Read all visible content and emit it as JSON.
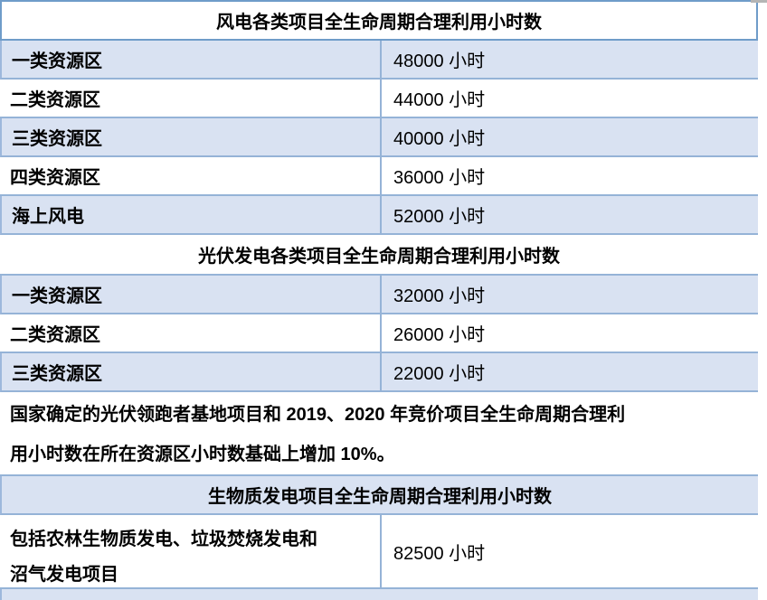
{
  "colors": {
    "shaded_row_bg": "#d9e2f2",
    "row_border": "#95b3d7",
    "header_box_border": "#6f9cc9",
    "text": "#000000"
  },
  "table": {
    "wind": {
      "title": "风电各类项目全生命周期合理利用小时数",
      "rows": [
        {
          "label": "一类资源区",
          "value": "48000 小时"
        },
        {
          "label": "二类资源区",
          "value": "44000 小时"
        },
        {
          "label": "三类资源区",
          "value": "40000 小时"
        },
        {
          "label": "四类资源区",
          "value": "36000 小时"
        },
        {
          "label": "海上风电",
          "value": "52000 小时"
        }
      ]
    },
    "solar": {
      "title": "光伏发电各类项目全生命周期合理利用小时数",
      "rows": [
        {
          "label": "一类资源区",
          "value": "32000 小时"
        },
        {
          "label": "二类资源区",
          "value": "26000 小时"
        },
        {
          "label": "三类资源区",
          "value": "22000 小时"
        }
      ],
      "note_lines": [
        "国家确定的光伏领跑者基地项目和 2019、2020 年竞价项目全生命周期合理利",
        "用小时数在所在资源区小时数基础上增加 10%。"
      ]
    },
    "biomass": {
      "title": "生物质发电项目全生命周期合理利用小时数",
      "row": {
        "label_lines": [
          "包括农林生物质发电、垃圾焚烧发电和",
          "沼气发电项目"
        ],
        "value": "82500 小时"
      }
    }
  }
}
